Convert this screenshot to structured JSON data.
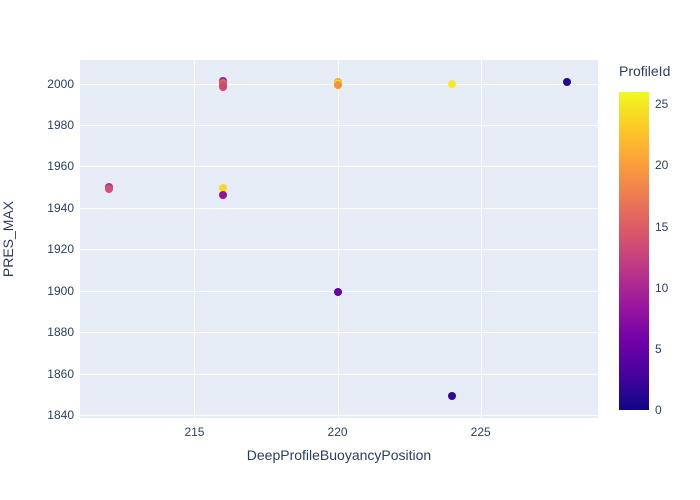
{
  "figure": {
    "background_color": "#ffffff",
    "plot_background_color": "#e5ecf6",
    "grid_color": "#ffffff",
    "text_color": "#2a3f5f"
  },
  "chart_data": {
    "type": "scatter",
    "title": "",
    "xlabel": "DeepProfileBuoyancyPosition",
    "ylabel": "PRES_MAX",
    "grid": true,
    "legend_position": "colorbar-right",
    "xlim": [
      211.0,
      229.1
    ],
    "ylim": [
      1838.6,
      2011.4
    ],
    "x_ticks": [
      215,
      220,
      225
    ],
    "y_ticks": [
      1840,
      1860,
      1880,
      1900,
      1920,
      1940,
      1960,
      1980,
      2000
    ],
    "points": [
      {
        "x": 212,
        "y": 1950.0,
        "profile_id": 11
      },
      {
        "x": 212,
        "y": 1949.1,
        "profile_id": 14
      },
      {
        "x": 216,
        "y": 2001.4,
        "profile_id": 9
      },
      {
        "x": 216,
        "y": 2000.4,
        "profile_id": 16
      },
      {
        "x": 216,
        "y": 1999.3,
        "profile_id": 14
      },
      {
        "x": 216,
        "y": 1998.2,
        "profile_id": 13
      },
      {
        "x": 216,
        "y": 1949.4,
        "profile_id": 24
      },
      {
        "x": 216,
        "y": 1946.0,
        "profile_id": 8
      },
      {
        "x": 220,
        "y": 2000.8,
        "profile_id": 21
      },
      {
        "x": 220,
        "y": 2000.0,
        "profile_id": 25
      },
      {
        "x": 220,
        "y": 1999.2,
        "profile_id": 19
      },
      {
        "x": 220,
        "y": 1899.5,
        "profile_id": 5
      },
      {
        "x": 224,
        "y": 2000.0,
        "profile_id": 25
      },
      {
        "x": 224,
        "y": 1849.0,
        "profile_id": 2
      },
      {
        "x": 228,
        "y": 2001.0,
        "profile_id": 1
      }
    ],
    "colorbar": {
      "title": "ProfileId",
      "min": 0,
      "max": 26,
      "ticks": [
        0,
        5,
        10,
        15,
        20,
        25
      ]
    },
    "colorscale_name": "plasma",
    "colorscale": [
      [
        0.0,
        "#0d0887"
      ],
      [
        0.1111,
        "#46039f"
      ],
      [
        0.2222,
        "#7201a8"
      ],
      [
        0.3333,
        "#9c179e"
      ],
      [
        0.4444,
        "#bd3786"
      ],
      [
        0.5556,
        "#d8576b"
      ],
      [
        0.6667,
        "#ed7953"
      ],
      [
        0.7778,
        "#fb9f3a"
      ],
      [
        0.8889,
        "#fdca26"
      ],
      [
        1.0,
        "#f0f921"
      ]
    ]
  }
}
